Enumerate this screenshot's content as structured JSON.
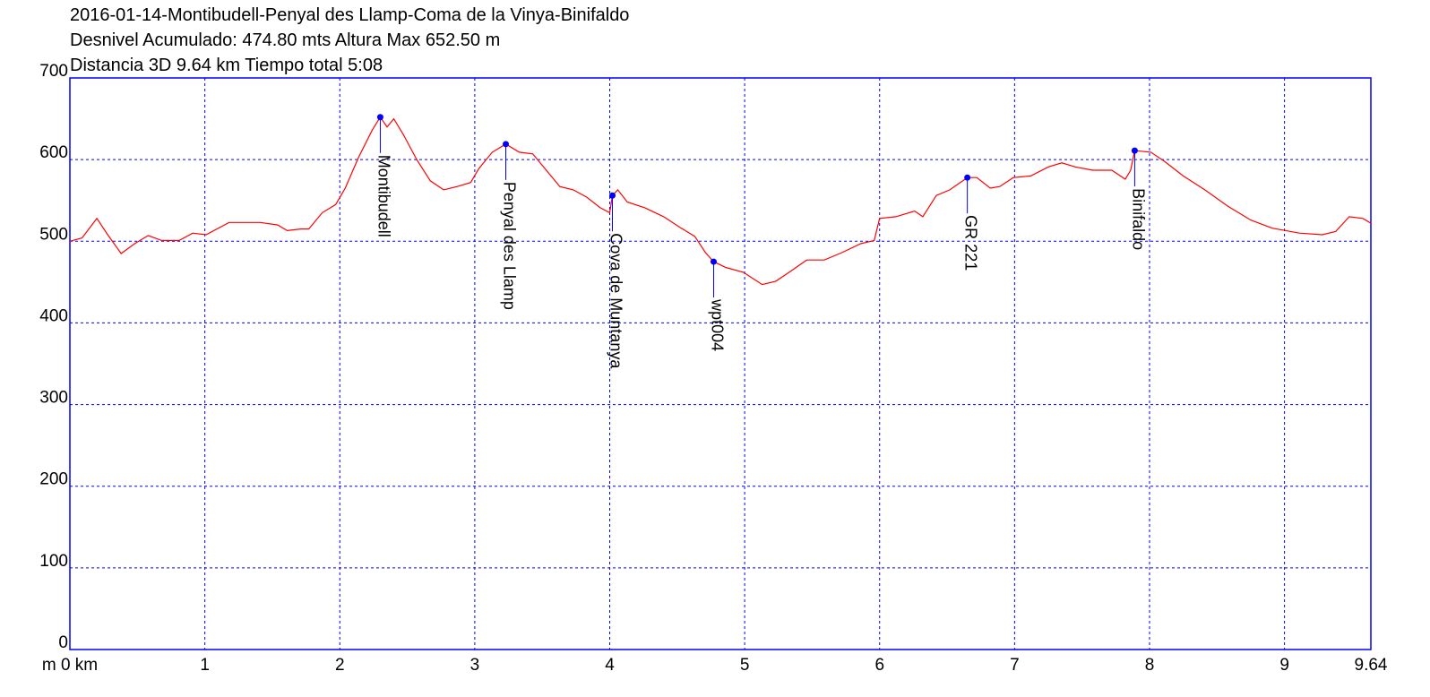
{
  "chart_data": {
    "type": "line",
    "title_lines": [
      "2016-01-14-Montibudell-Penyal des Llamp-Coma de la Vinya-Binifaldo",
      "Desnivel Acumulado: 474.80 mts  Altura Max 652.50 m",
      "Distancia 3D 9.64 km  Tiempo total 5:08"
    ],
    "x": [
      0,
      0.09,
      0.2,
      0.28,
      0.38,
      0.48,
      0.58,
      0.68,
      0.81,
      0.91,
      1.01,
      1.18,
      1.41,
      1.54,
      1.61,
      1.71,
      1.77,
      1.87,
      1.97,
      2.04,
      2.14,
      2.24,
      2.3,
      2.35,
      2.4,
      2.47,
      2.57,
      2.67,
      2.77,
      2.87,
      2.97,
      3.03,
      3.13,
      3.23,
      3.33,
      3.43,
      3.53,
      3.63,
      3.73,
      3.83,
      3.93,
      4.0,
      4.02,
      4.06,
      4.13,
      4.26,
      4.4,
      4.53,
      4.63,
      4.71,
      4.77,
      4.86,
      4.99,
      5.13,
      5.23,
      5.33,
      5.46,
      5.59,
      5.72,
      5.86,
      5.96,
      6.0,
      6.12,
      6.26,
      6.32,
      6.42,
      6.52,
      6.65,
      6.72,
      6.82,
      6.89,
      6.99,
      7.12,
      7.25,
      7.35,
      7.45,
      7.58,
      7.72,
      7.82,
      7.86,
      7.89,
      8.01,
      8.11,
      8.25,
      8.41,
      8.58,
      8.75,
      8.91,
      9.11,
      9.28,
      9.38,
      9.48,
      9.58,
      9.64
    ],
    "series": [
      {
        "color": "#ff0000",
        "values": [
          500,
          504,
          528,
          508,
          485,
          497,
          507,
          501,
          501,
          510,
          508,
          523,
          523,
          520,
          513,
          515,
          515,
          535,
          545,
          565,
          603,
          636,
          652,
          640,
          650,
          631,
          600,
          574,
          563,
          567,
          572,
          589,
          609,
          619,
          609,
          607,
          587,
          567,
          563,
          554,
          541,
          535,
          556,
          563,
          548,
          541,
          530,
          516,
          506,
          486,
          475,
          468,
          462,
          447,
          451,
          462,
          477,
          477,
          486,
          497,
          501,
          528,
          530,
          537,
          530,
          556,
          563,
          578,
          578,
          565,
          567,
          578,
          580,
          591,
          596,
          591,
          587,
          587,
          576,
          587,
          611,
          609,
          598,
          580,
          563,
          543,
          526,
          516,
          510,
          508,
          512,
          530,
          528,
          522
        ]
      }
    ],
    "waypoints": [
      {
        "name": "Montibudell",
        "x": 2.3,
        "y": 652
      },
      {
        "name": "Penyal des Llamp",
        "x": 3.23,
        "y": 619
      },
      {
        "name": "Cova de Muntanya",
        "x": 4.02,
        "y": 556
      },
      {
        "name": "wpt004",
        "x": 4.77,
        "y": 475
      },
      {
        "name": "GR 221",
        "x": 6.65,
        "y": 578
      },
      {
        "name": "Binifaldo",
        "x": 7.89,
        "y": 611
      }
    ],
    "waypoint_color": "#0000ff",
    "axis_color": "#0000ff",
    "xlim": [
      0,
      9.64
    ],
    "xticks": [
      {
        "value": 0,
        "label": "m 0 km"
      },
      1,
      2,
      3,
      4,
      5,
      6,
      7,
      8,
      9,
      9.64
    ],
    "ylim": [
      0,
      700
    ],
    "yticks": [
      0,
      100,
      200,
      300,
      400,
      500,
      600,
      700
    ],
    "grid": true
  }
}
